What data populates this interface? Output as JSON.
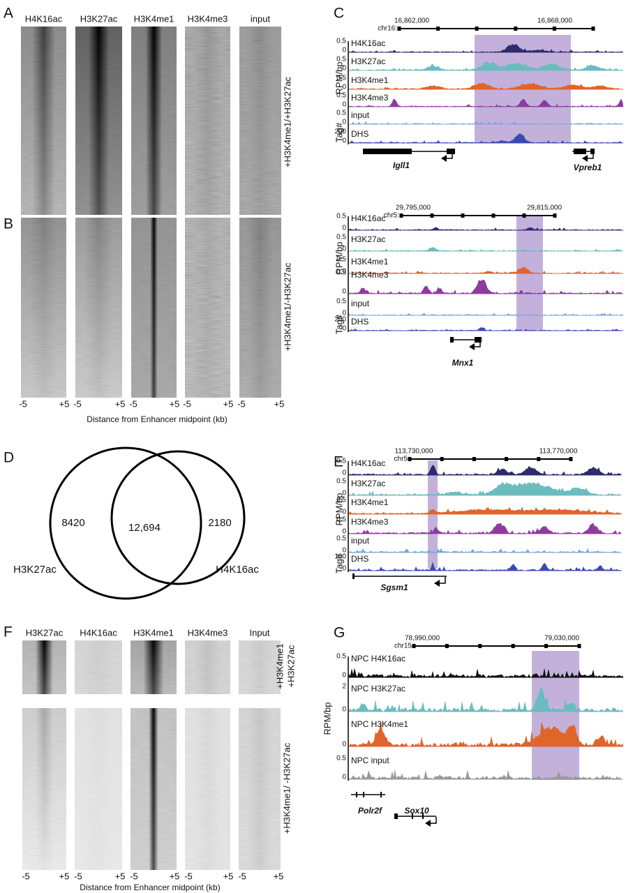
{
  "panel_a": {
    "letter": "A",
    "columns": [
      "H4K16ac",
      "H3K27ac",
      "H3K4me1",
      "H3K4me3",
      "input"
    ],
    "row_label": "+H3K4me1/+H3K27ac"
  },
  "panel_b": {
    "letter": "B",
    "row_label": "+H3K4me1/-H3K27ac",
    "ticks": [
      [
        "-5",
        "+5"
      ],
      [
        "-5",
        "+5"
      ],
      [
        "-5",
        "+5"
      ],
      [
        "-5",
        "+5"
      ],
      [
        "-5",
        "+5"
      ]
    ],
    "axis_label": "Distance from Enhancer midpoint (kb)"
  },
  "panel_c": {
    "letter": "C",
    "chrom": "chr16:",
    "coords": [
      "16,862,000",
      "16,868,000"
    ],
    "y_labels": [
      "RPM/bp",
      "Tag#"
    ],
    "tracks": [
      {
        "name": "H4K16ac",
        "max": "0.5",
        "min": "0",
        "color": "#2e2a6e"
      },
      {
        "name": "H3K27ac",
        "max": "0.5",
        "min": "0",
        "color": "#6bbcbf"
      },
      {
        "name": "H3K4me1",
        "max": "0.5",
        "min": "0",
        "color": "#e0652a"
      },
      {
        "name": "H3K4me3",
        "max": "0.5",
        "min": "0",
        "color": "#8e3b9e"
      },
      {
        "name": "input",
        "max": "0.5",
        "min": "0",
        "color": "#7aa6d6"
      },
      {
        "name": "DHS",
        "max": "200",
        "min": "0",
        "color": "#3a4bb0"
      }
    ],
    "genes": [
      "Igll1",
      "Vpreb1"
    ]
  },
  "panel_c2": {
    "chrom": "chr5:",
    "coords": [
      "29,795,000",
      "29,815,000"
    ],
    "y_labels": [
      "RPM/bp",
      "Tag#"
    ],
    "tracks": [
      {
        "name": "H4K16ac",
        "max": "0.5",
        "min": "0",
        "color": "#2e2a6e"
      },
      {
        "name": "H3K27ac",
        "max": "0.5",
        "min": "0",
        "color": "#6bbcbf"
      },
      {
        "name": "H3K4me1",
        "max": "0.5",
        "min": "0",
        "color": "#e0652a"
      },
      {
        "name": "H3K4me3",
        "max": "0.5",
        "min": "0",
        "color": "#8e3b9e"
      },
      {
        "name": "input",
        "max": "0.5",
        "min": "0",
        "color": "#7aa6d6"
      },
      {
        "name": "DHS",
        "max": "200",
        "min": "0",
        "color": "#3a4bb0"
      }
    ],
    "genes": [
      "Mnx1"
    ]
  },
  "panel_d": {
    "letter": "D",
    "sets": [
      "H3K27ac",
      "H4K16ac"
    ],
    "counts": [
      "8420",
      "12,694",
      "2180"
    ]
  },
  "panel_e": {
    "letter": "E",
    "chrom": "chr5",
    "coords": [
      "113,730,000",
      "113,770,000"
    ],
    "y_labels": [
      "RPM/bp",
      "Tag#"
    ],
    "tracks": [
      {
        "name": "H4K16ac",
        "max": "0.5",
        "min": "0",
        "color": "#2e2a6e"
      },
      {
        "name": "H3K27ac",
        "max": "0.5",
        "min": "0",
        "color": "#6bbcbf"
      },
      {
        "name": "H3K4me1",
        "max": "0.5",
        "min": "0",
        "color": "#e0652a"
      },
      {
        "name": "H3K4me3",
        "max": "0.5",
        "min": "0",
        "color": "#8e3b9e"
      },
      {
        "name": "input",
        "max": "0.5",
        "min": "0",
        "color": "#7aa6d6"
      },
      {
        "name": "DHS",
        "max": "100",
        "min": "0",
        "color": "#3a4bb0"
      }
    ],
    "genes": [
      "Sgsm1"
    ]
  },
  "panel_f": {
    "letter": "F",
    "columns": [
      "H3K27ac",
      "H4K16ac",
      "H3K4me1",
      "H3K4me3",
      "Input"
    ],
    "row_labels": [
      [
        "+H3K4me1",
        "+H3K27ac"
      ],
      [
        "+H3K4me1/ -H3K27ac"
      ]
    ],
    "ticks": [
      [
        "-5",
        "+5"
      ],
      [
        "-5",
        "+5"
      ],
      [
        "-5",
        "+5"
      ],
      [
        "-5",
        "+5"
      ],
      [
        "-5",
        "+5"
      ]
    ],
    "axis_label": "Distance from Enhancer midpoint (kb)"
  },
  "panel_g": {
    "letter": "G",
    "chrom": "chr15",
    "coords": [
      "78,990,000",
      "79,030,000"
    ],
    "y_labels": [
      "RPM/bp"
    ],
    "tracks": [
      {
        "name": "NPC H4K16ac",
        "max": "0.5",
        "min": "0",
        "color": "#111111"
      },
      {
        "name": "NPC H3K27ac",
        "max": "2",
        "min": "0",
        "color": "#6bbcbf"
      },
      {
        "name": "NPC H3K4me1",
        "min": "0",
        "color": "#e0652a"
      },
      {
        "name": "NPC input",
        "max": "0.5",
        "min": "0",
        "color": "#999999"
      }
    ],
    "genes": [
      "Polr2f",
      "Sox10"
    ]
  }
}
